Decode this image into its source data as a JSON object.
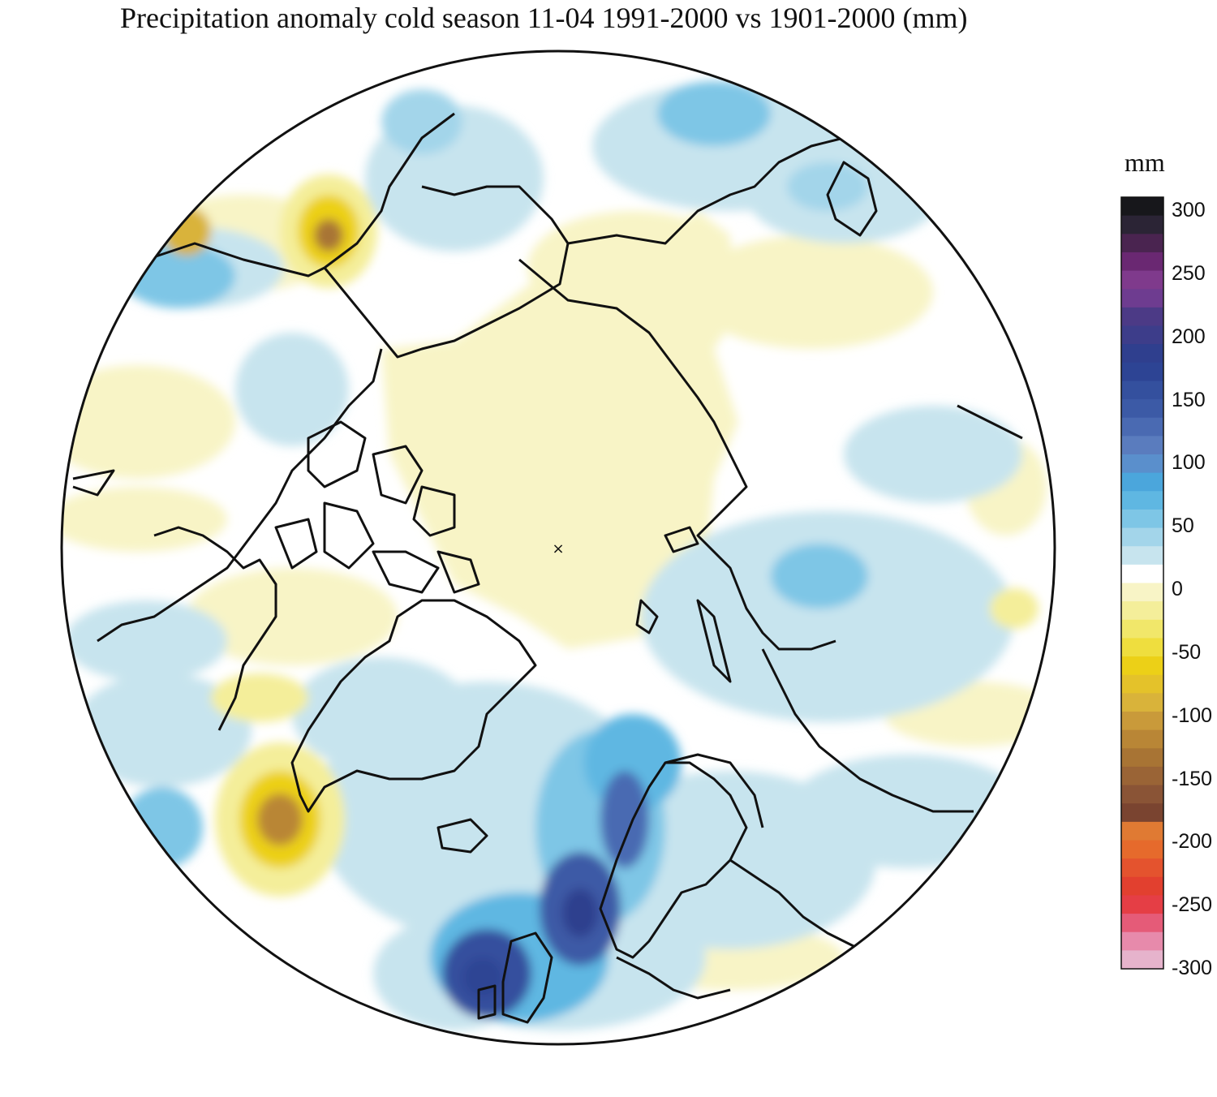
{
  "title": "Precipitation anomaly cold season 11-04 1991-2000 vs 1901-2000 (mm)",
  "legend": {
    "unit": "mm",
    "ticks": [
      "300",
      "250",
      "200",
      "150",
      "100",
      "50",
      "0",
      "-50",
      "-100",
      "-150",
      "-200",
      "-250",
      "-300"
    ],
    "min": -300,
    "max": 300,
    "step": 10,
    "colors": [
      "#17171b",
      "#2b2435",
      "#4a2450",
      "#6a2872",
      "#7f3a8c",
      "#6e3c90",
      "#4c3a86",
      "#3d3d8a",
      "#2f3f8e",
      "#2d4494",
      "#34509e",
      "#3c5aa6",
      "#4a6ab2",
      "#5a7cbe",
      "#5a8fcc",
      "#4ba6dc",
      "#5fb7e2",
      "#7ec6e6",
      "#a3d5ea",
      "#c7e4ee",
      "#ffffff",
      "#f8f4c6",
      "#f4ee9a",
      "#f1e76a",
      "#efde3e",
      "#ecd017",
      "#e4c22a",
      "#d9b33a",
      "#c99a3a",
      "#b98636",
      "#a87434",
      "#9a6436",
      "#8a5436",
      "#7a4430",
      "#e07a33",
      "#e66a2c",
      "#e4532e",
      "#e2402f",
      "#e53e45",
      "#e55b78",
      "#e78aab",
      "#e6b3cc"
    ]
  },
  "map": {
    "projection": "north polar stereographic",
    "pole_marker": "×"
  }
}
